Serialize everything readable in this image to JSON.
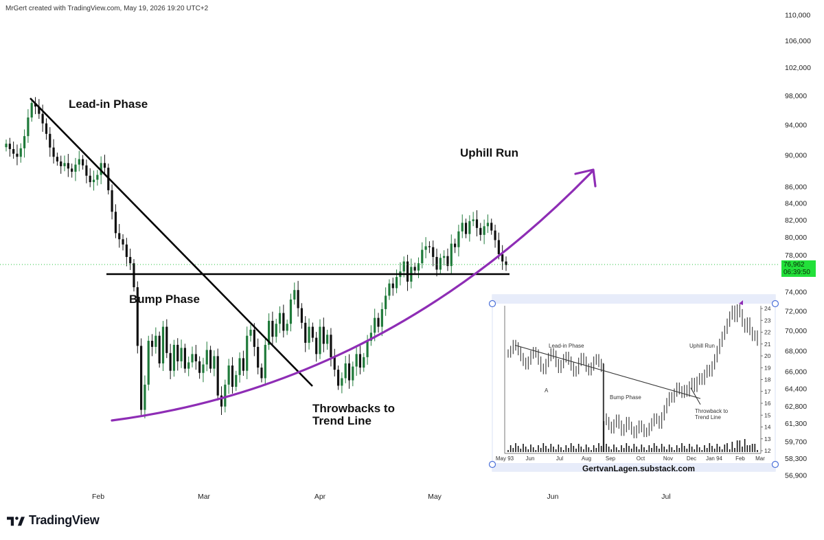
{
  "header": {
    "text": "MrGert created with TradingView.com, May 19, 2026 19:20 UTC+2"
  },
  "brand": {
    "logo_text": "TradingView"
  },
  "chart_data": [
    {
      "type": "candlestick",
      "y_axis": {
        "position": "right",
        "scale": "log",
        "ticks": [
          "110,000",
          "106,000",
          "102,000",
          "98,000",
          "94,000",
          "90,000",
          "86,000",
          "84,000",
          "82,000",
          "80,000",
          "78,000",
          "74,000",
          "72,000",
          "70,000",
          "68,000",
          "66,000",
          "64,400",
          "62,800",
          "61,300",
          "59,700",
          "58,300",
          "56,900"
        ]
      },
      "x_axis": {
        "ticks": [
          "Feb",
          "Mar",
          "Apr",
          "May",
          "Jun",
          "Jul"
        ]
      },
      "last_price": {
        "value": "76,962",
        "countdown": "06:39:50",
        "color": "#22e03a"
      },
      "annotations": [
        "Lead-in Phase",
        "Bump Phase",
        "Throwbacks to\nTrend Line",
        "Uphill Run"
      ],
      "drawings": {
        "down_trend_line": {
          "from": [
            "Jan",
            98000
          ],
          "to": [
            "Apr",
            65200
          ]
        },
        "horizontal_line": 76400,
        "uphill_curve_color": "#8e2db5"
      },
      "candles_close": [
        91500,
        90800,
        90200,
        89800,
        90900,
        92500,
        95000,
        97000,
        96500,
        95500,
        94200,
        92800,
        91000,
        89800,
        89200,
        88600,
        89000,
        88300,
        87900,
        88800,
        89500,
        88700,
        87400,
        86600,
        86900,
        87500,
        89000,
        88400,
        85600,
        83000,
        80500,
        79800,
        79200,
        77800,
        77100,
        74500,
        68500,
        62500,
        64800,
        69000,
        68400,
        69500,
        66800,
        70400,
        67800,
        66100,
        68600,
        67000,
        68300,
        66300,
        66900,
        67700,
        67000,
        65900,
        66700,
        68100,
        66300,
        67500,
        63800,
        62800,
        64800,
        66600,
        64600,
        65700,
        67300,
        66100,
        69500,
        70100,
        68400,
        66400,
        65400,
        68600,
        71000,
        69400,
        70700,
        71800,
        70000,
        70700,
        73200,
        74200,
        72300,
        70800,
        68800,
        70400,
        69300,
        67700,
        70400,
        68700,
        69600,
        67400,
        66200,
        64700,
        65400,
        66800,
        65200,
        66500,
        67700,
        66400,
        67400,
        69000,
        69800,
        71300,
        70400,
        72200,
        73600,
        74900,
        74400,
        75600,
        76200,
        77300,
        75100,
        76700,
        76300,
        77100,
        78600,
        79000,
        78900,
        77800,
        76400,
        77700,
        77900,
        76800,
        79300,
        78900,
        80700,
        81700,
        80400,
        81900,
        82100,
        81100,
        80300,
        81300,
        81700,
        80800,
        79700,
        78100,
        77300,
        76900
      ],
      "inset": {
        "x_ticks": [
          "May 93",
          "Jun",
          "Jul",
          "Aug",
          "Sep",
          "Oct",
          "Nov",
          "Dec",
          "Jan 94",
          "Feb",
          "Mar"
        ],
        "y_ticks": [
          "24",
          "23",
          "22",
          "21",
          "20",
          "19",
          "18",
          "17",
          "16",
          "15",
          "14",
          "13",
          "12"
        ],
        "labels": [
          "Lead-in Phase",
          "A",
          "Bump Phase",
          "Throwback to\nTrend Line",
          "Uphill Run"
        ],
        "watermark": "GertvanLagen.substack.com",
        "closes": [
          20.2,
          20.5,
          21.0,
          20.8,
          20.4,
          19.9,
          19.5,
          19.2,
          19.6,
          20.1,
          20.4,
          20.2,
          19.6,
          19.0,
          18.8,
          19.4,
          19.9,
          20.3,
          20.1,
          19.4,
          18.9,
          19.3,
          19.8,
          20.0,
          19.6,
          19.1,
          18.6,
          18.8,
          19.5,
          19.9,
          19.6,
          19.0,
          18.7,
          19.1,
          19.6,
          19.8,
          19.4,
          19.0,
          14.8,
          14.5,
          14.1,
          13.8,
          14.3,
          14.7,
          14.2,
          13.6,
          13.9,
          14.5,
          14.1,
          13.7,
          13.4,
          13.8,
          14.2,
          13.9,
          13.5,
          13.6,
          14.0,
          14.4,
          14.8,
          14.6,
          14.2,
          14.9,
          15.5,
          16.1,
          16.6,
          16.4,
          16.9,
          17.4,
          17.1,
          16.8,
          17.2,
          16.9,
          17.5,
          17.8,
          17.3,
          17.9,
          18.2,
          17.9,
          18.5,
          18.9,
          18.6,
          19.2,
          19.8,
          20.5,
          21.1,
          21.7,
          22.2,
          22.8,
          23.4,
          23.9,
          23.2,
          24.0,
          23.6,
          22.8,
          22.3,
          22.9,
          22.1,
          21.6,
          21.8,
          21.2
        ]
      }
    }
  ]
}
